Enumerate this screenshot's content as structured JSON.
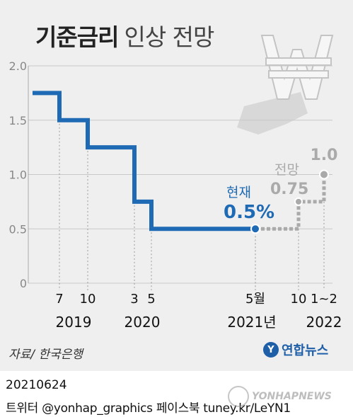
{
  "title": {
    "bold": "기준금리",
    "light": "인상 전망"
  },
  "chart_data": {
    "type": "line",
    "style": "step",
    "ylim": [
      0,
      2.0
    ],
    "yticks": [
      {
        "value": 0,
        "label": "0"
      },
      {
        "value": 0.5,
        "label": "0.5"
      },
      {
        "value": 1.0,
        "label": "1.0"
      },
      {
        "value": 1.5,
        "label": "1.5"
      },
      {
        "value": 2.0,
        "label": "2.0"
      }
    ],
    "months": [
      {
        "label": "7",
        "year": "2019"
      },
      {
        "label": "10",
        "year": "2019"
      },
      {
        "label": "3",
        "year": "2020"
      },
      {
        "label": "5",
        "year": "2020"
      },
      {
        "label": "5월",
        "year": "2021년"
      },
      {
        "label": "10",
        "year": "2021년"
      },
      {
        "label": "1~2",
        "year": "2022"
      }
    ],
    "years": [
      "2019",
      "2020",
      "2021년",
      "2022"
    ],
    "series": [
      {
        "name": "현재",
        "color": "#1e6ab4",
        "steps": [
          {
            "from": "start",
            "value": 1.75
          },
          {
            "from": "7",
            "value": 1.5
          },
          {
            "from": "10",
            "value": 1.25
          },
          {
            "from": "3",
            "value": 0.75
          },
          {
            "from": "5",
            "value": 0.5
          },
          {
            "from": "5월",
            "value": 0.5
          }
        ]
      },
      {
        "name": "전망",
        "color": "#aaaaaa",
        "steps": [
          {
            "from": "5월",
            "value": 0.5
          },
          {
            "from": "10",
            "value": 0.75
          },
          {
            "from": "1~2",
            "value": 1.0
          }
        ]
      }
    ],
    "annotations": {
      "current": {
        "label": "현재",
        "value": "0.5%",
        "color": "#1e6ab4"
      },
      "forecast": {
        "label": "전망",
        "values": [
          "0.75",
          "1.0"
        ],
        "color": "#aaaaaa"
      }
    }
  },
  "footer": {
    "source": "자료/ 한국은행",
    "brand": "연합뉴스",
    "brand_logo": "Y",
    "date": "20210624",
    "social": "트위터 @yonhap_graphics  페이스북 tuney.kr/LeYN1",
    "watermark": "YONHAPNEWS"
  }
}
